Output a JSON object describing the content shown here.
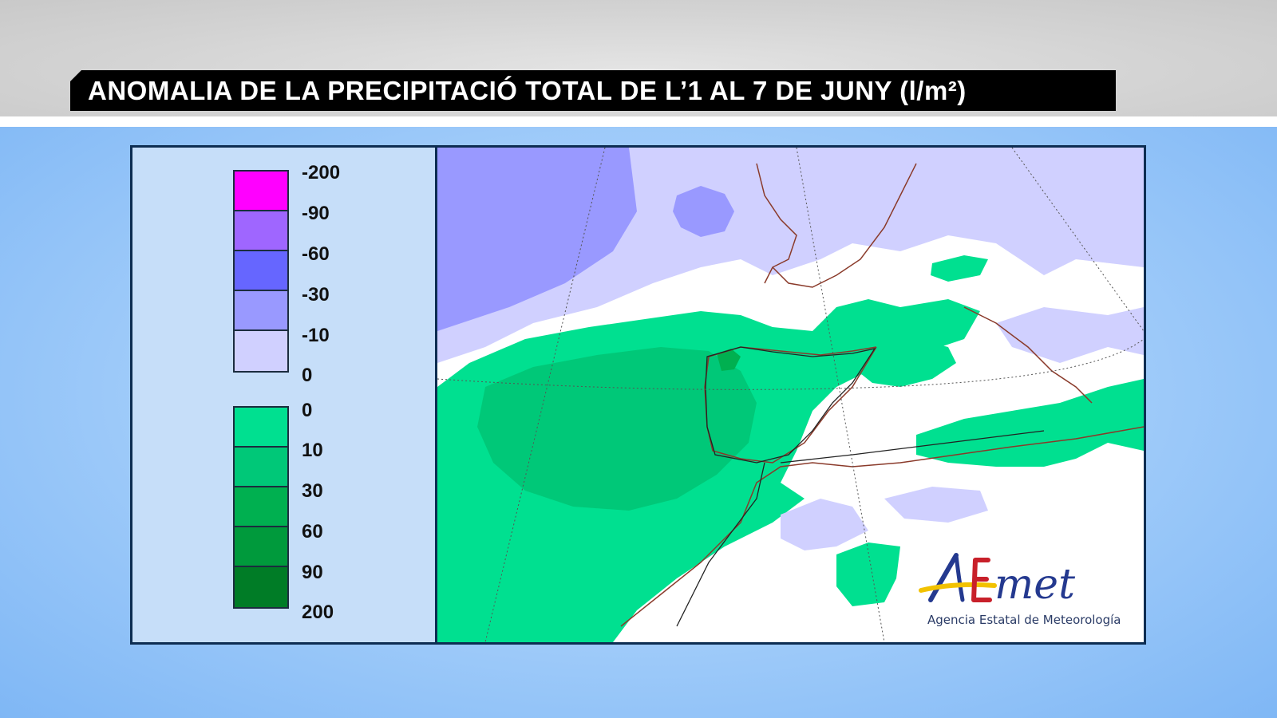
{
  "header": {
    "title": "ANOMALIA DE LA PRECIPITACIÓ TOTAL DE L’1 AL 7 DE JUNY (l/m²)"
  },
  "legend": {
    "negative": {
      "colors": [
        "#ff00ff",
        "#9f66ff",
        "#6666ff",
        "#9999ff",
        "#d0d0ff"
      ],
      "ticks": [
        "-200",
        "-90",
        "-60",
        "-30",
        "-10",
        "0"
      ]
    },
    "positive": {
      "colors": [
        "#00e090",
        "#00c878",
        "#00b050",
        "#009a3c",
        "#007c26"
      ],
      "ticks": [
        "0",
        "10",
        "30",
        "60",
        "90",
        "200"
      ]
    }
  },
  "map": {
    "ocean_west_color": "#9999ff",
    "light_color": "#d0d0ff",
    "green_color": "#00e090",
    "green_mid_color": "#00c878",
    "green_dark_color": "#00b050",
    "coast_color": "#8a3a2a",
    "border_color": "#222222"
  },
  "logo": {
    "brand": "AEmet",
    "subtitle": "Agencia Estatal de Meteorología",
    "colors": {
      "blue": "#24398f",
      "yellow": "#f2c200",
      "red": "#c8202a"
    }
  }
}
